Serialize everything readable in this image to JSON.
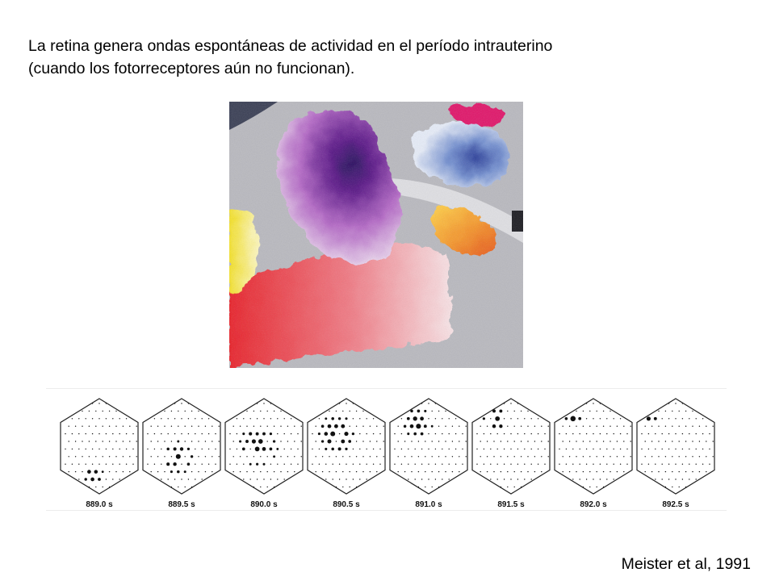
{
  "slide": {
    "title_lines": [
      "La retina genera ondas espontáneas de actividad en el período intrauterino",
      "(cuando los fotorreceptores aún no funcionan)."
    ],
    "citation": "Meister et al, 1991"
  },
  "retina_image": {
    "icon": "retinal-wave-calcium-map",
    "colors": {
      "background": "#b7b7bd",
      "purple": "#6a1b8a",
      "magenta": "#e0136a",
      "blue": "#6f86c8",
      "yellow": "#f4e12a",
      "orange": "#f2882a",
      "red": "#e8232b",
      "pink": "#f3c6cc"
    }
  },
  "electrode_frames": [
    {
      "time": "889.0 s",
      "center": [
        0.42,
        0.8
      ],
      "spread": 0.13,
      "active_count": 12
    },
    {
      "time": "889.5 s",
      "center": [
        0.45,
        0.62
      ],
      "spread": 0.22,
      "active_count": 28
    },
    {
      "time": "890.0 s",
      "center": [
        0.42,
        0.5
      ],
      "spread": 0.26,
      "active_count": 34
    },
    {
      "time": "890.5 s",
      "center": [
        0.38,
        0.38
      ],
      "spread": 0.26,
      "active_count": 36
    },
    {
      "time": "891.0 s",
      "center": [
        0.35,
        0.25
      ],
      "spread": 0.2,
      "active_count": 24
    },
    {
      "time": "891.5 s",
      "center": [
        0.3,
        0.22
      ],
      "spread": 0.17,
      "active_count": 16
    },
    {
      "time": "892.0 s",
      "center": [
        0.25,
        0.2
      ],
      "spread": 0.12,
      "active_count": 9
    },
    {
      "time": "892.5 s",
      "center": [
        0.18,
        0.22
      ],
      "spread": 0.08,
      "active_count": 3
    }
  ]
}
